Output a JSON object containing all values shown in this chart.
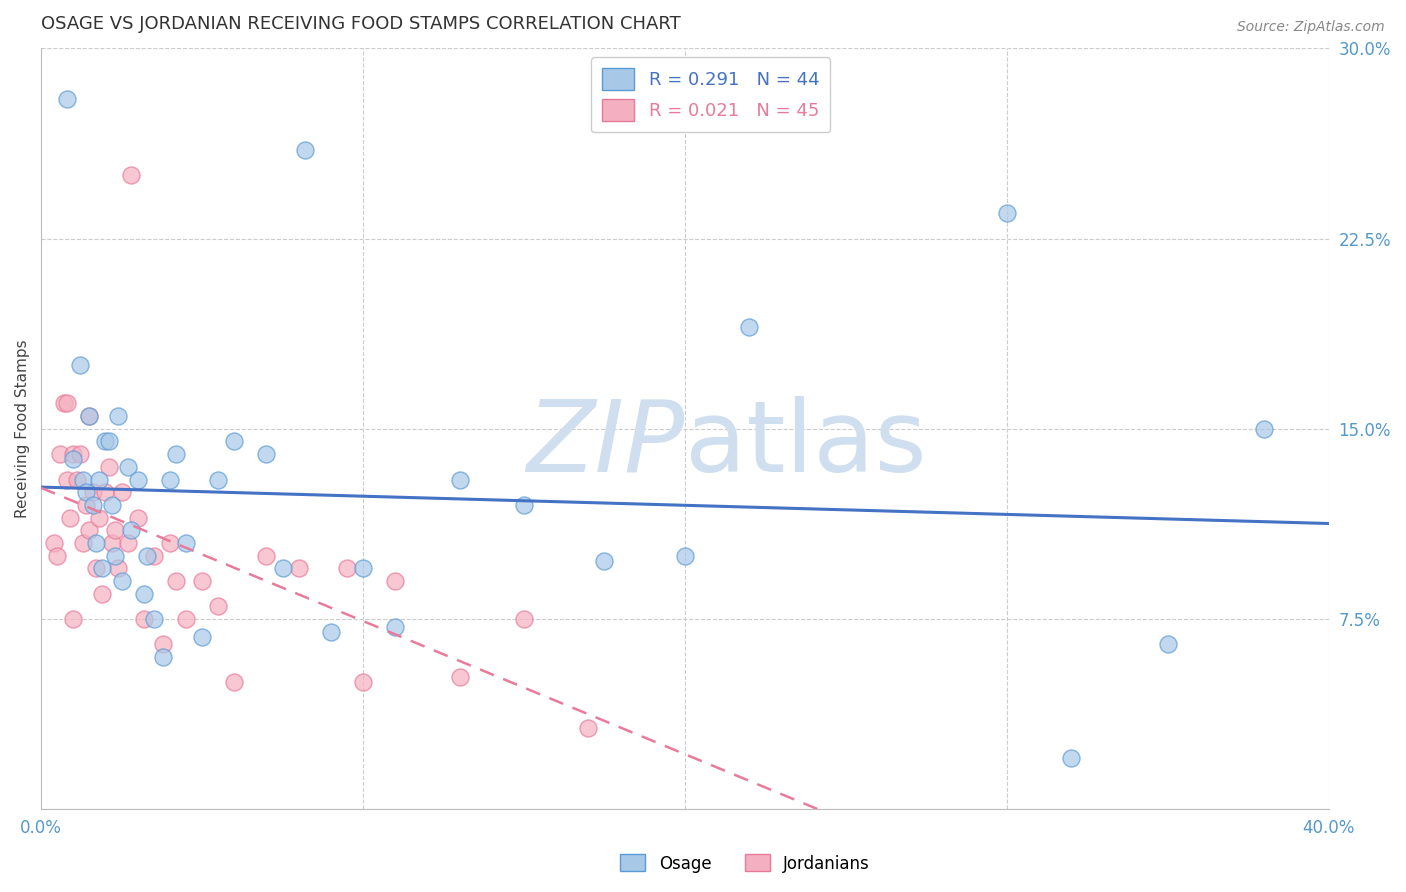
{
  "title": "OSAGE VS JORDANIAN RECEIVING FOOD STAMPS CORRELATION CHART",
  "source": "Source: ZipAtlas.com",
  "ylabel": "Receiving Food Stamps",
  "xlim": [
    0.0,
    0.4
  ],
  "ylim": [
    0.0,
    0.3
  ],
  "xtick_vals": [
    0.0,
    0.1,
    0.2,
    0.3,
    0.4
  ],
  "xtick_labels": [
    "0.0%",
    "",
    "",
    "",
    "40.0%"
  ],
  "ytick_vals": [
    0.0,
    0.075,
    0.15,
    0.225,
    0.3
  ],
  "ytick_labels": [
    "",
    "7.5%",
    "15.0%",
    "22.5%",
    "30.0%"
  ],
  "osage_R": "0.291",
  "osage_N": "44",
  "jordanian_R": "0.021",
  "jordanian_N": "45",
  "osage_color": "#a8c8e8",
  "jordanian_color": "#f4b0c0",
  "osage_edge_color": "#5b9bd5",
  "jordanian_edge_color": "#e8799a",
  "osage_line_color": "#4472c4",
  "jordanian_line_color": "#e87b99",
  "watermark_color": "#d0dff0",
  "background_color": "#ffffff",
  "grid_color": "#cccccc",
  "axis_color": "#5599cc",
  "title_color": "#333333",
  "source_color": "#888888",
  "osage_x": [
    0.008,
    0.01,
    0.012,
    0.013,
    0.014,
    0.015,
    0.016,
    0.017,
    0.018,
    0.019,
    0.02,
    0.021,
    0.022,
    0.023,
    0.024,
    0.025,
    0.027,
    0.028,
    0.03,
    0.032,
    0.033,
    0.035,
    0.038,
    0.04,
    0.042,
    0.045,
    0.05,
    0.055,
    0.06,
    0.07,
    0.075,
    0.082,
    0.09,
    0.1,
    0.11,
    0.13,
    0.15,
    0.175,
    0.2,
    0.22,
    0.3,
    0.32,
    0.35,
    0.38
  ],
  "osage_y": [
    0.28,
    0.138,
    0.175,
    0.13,
    0.125,
    0.155,
    0.12,
    0.105,
    0.13,
    0.095,
    0.145,
    0.145,
    0.12,
    0.1,
    0.155,
    0.09,
    0.135,
    0.11,
    0.13,
    0.085,
    0.1,
    0.075,
    0.06,
    0.13,
    0.14,
    0.105,
    0.068,
    0.13,
    0.145,
    0.14,
    0.095,
    0.26,
    0.07,
    0.095,
    0.072,
    0.13,
    0.12,
    0.098,
    0.1,
    0.19,
    0.235,
    0.02,
    0.065,
    0.15
  ],
  "jordanian_x": [
    0.004,
    0.005,
    0.006,
    0.007,
    0.008,
    0.008,
    0.009,
    0.01,
    0.01,
    0.011,
    0.012,
    0.013,
    0.014,
    0.015,
    0.015,
    0.016,
    0.017,
    0.018,
    0.019,
    0.02,
    0.021,
    0.022,
    0.023,
    0.024,
    0.025,
    0.027,
    0.028,
    0.03,
    0.032,
    0.035,
    0.038,
    0.04,
    0.042,
    0.045,
    0.05,
    0.055,
    0.06,
    0.07,
    0.08,
    0.095,
    0.1,
    0.11,
    0.13,
    0.15,
    0.17
  ],
  "jordanian_y": [
    0.105,
    0.1,
    0.14,
    0.16,
    0.16,
    0.13,
    0.115,
    0.14,
    0.075,
    0.13,
    0.14,
    0.105,
    0.12,
    0.155,
    0.11,
    0.125,
    0.095,
    0.115,
    0.085,
    0.125,
    0.135,
    0.105,
    0.11,
    0.095,
    0.125,
    0.105,
    0.25,
    0.115,
    0.075,
    0.1,
    0.065,
    0.105,
    0.09,
    0.075,
    0.09,
    0.08,
    0.05,
    0.1,
    0.095,
    0.095,
    0.05,
    0.09,
    0.052,
    0.075,
    0.032
  ]
}
